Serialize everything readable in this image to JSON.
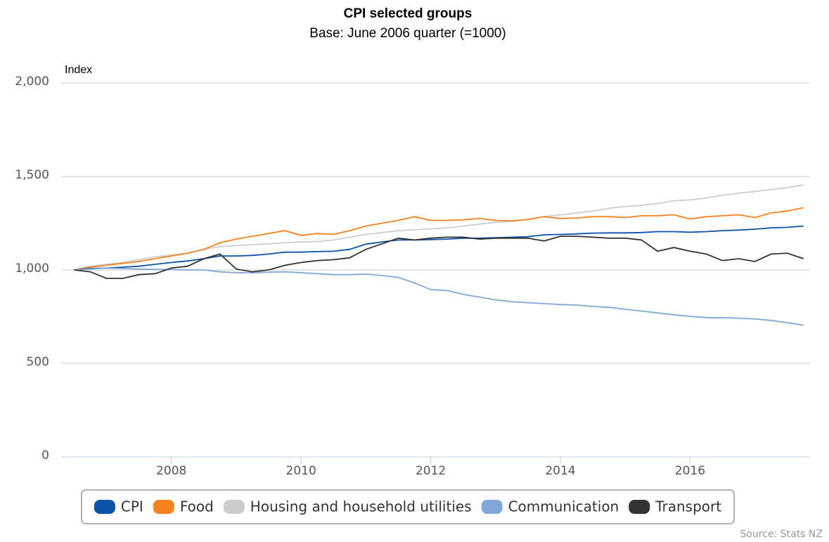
{
  "chart_data": {
    "type": "line",
    "title": "CPI selected groups",
    "subtitle": "Base: June 2006 quarter (=1000)",
    "y_axis_label": "Index",
    "source": "Source: Stats NZ",
    "x": [
      2006.5,
      2006.75,
      2007,
      2007.25,
      2007.5,
      2007.75,
      2008,
      2008.25,
      2008.5,
      2008.75,
      2009,
      2009.25,
      2009.5,
      2009.75,
      2010,
      2010.25,
      2010.5,
      2010.75,
      2011,
      2011.25,
      2011.5,
      2011.75,
      2012,
      2012.25,
      2012.5,
      2012.75,
      2013,
      2013.25,
      2013.5,
      2013.75,
      2014,
      2014.25,
      2014.5,
      2014.75,
      2015,
      2015.25,
      2015.5,
      2015.75,
      2016,
      2016.25,
      2016.5,
      2016.75,
      2017,
      2017.25,
      2017.5,
      2017.75
    ],
    "series": [
      {
        "name": "CPI",
        "color": "#0b52a8",
        "values": [
          1000,
          1008,
          1010,
          1015,
          1020,
          1030,
          1040,
          1048,
          1060,
          1075,
          1075,
          1078,
          1085,
          1095,
          1095,
          1098,
          1100,
          1110,
          1138,
          1150,
          1160,
          1160,
          1162,
          1165,
          1170,
          1170,
          1172,
          1175,
          1178,
          1188,
          1190,
          1193,
          1197,
          1198,
          1198,
          1200,
          1205,
          1205,
          1202,
          1205,
          1210,
          1213,
          1218,
          1225,
          1228,
          1235
        ]
      },
      {
        "name": "Food",
        "color": "#f5821f",
        "values": [
          1000,
          1015,
          1025,
          1035,
          1045,
          1060,
          1075,
          1090,
          1110,
          1145,
          1165,
          1180,
          1195,
          1210,
          1185,
          1195,
          1190,
          1210,
          1235,
          1250,
          1265,
          1285,
          1265,
          1265,
          1268,
          1275,
          1265,
          1262,
          1270,
          1285,
          1275,
          1278,
          1285,
          1285,
          1280,
          1290,
          1290,
          1295,
          1272,
          1285,
          1290,
          1295,
          1280,
          1305,
          1315,
          1333
        ]
      },
      {
        "name": "Housing and household utilities",
        "color": "#cccccc",
        "values": [
          1000,
          1020,
          1030,
          1040,
          1055,
          1070,
          1080,
          1090,
          1110,
          1125,
          1130,
          1135,
          1140,
          1145,
          1150,
          1152,
          1160,
          1175,
          1190,
          1200,
          1210,
          1215,
          1220,
          1225,
          1235,
          1245,
          1255,
          1260,
          1270,
          1285,
          1295,
          1305,
          1315,
          1330,
          1340,
          1345,
          1355,
          1370,
          1375,
          1385,
          1400,
          1410,
          1420,
          1430,
          1440,
          1455
        ]
      },
      {
        "name": "Communication",
        "color": "#7fa7d8",
        "values": [
          1000,
          1005,
          1010,
          1008,
          1005,
          1003,
          1002,
          1000,
          1000,
          990,
          985,
          985,
          988,
          990,
          985,
          980,
          975,
          975,
          978,
          970,
          960,
          930,
          895,
          890,
          870,
          855,
          840,
          830,
          825,
          820,
          815,
          812,
          805,
          800,
          790,
          780,
          770,
          760,
          752,
          745,
          745,
          742,
          738,
          730,
          718,
          705
        ]
      },
      {
        "name": "Transport",
        "color": "#333333",
        "values": [
          1000,
          990,
          955,
          955,
          975,
          980,
          1010,
          1020,
          1060,
          1085,
          1005,
          990,
          1000,
          1025,
          1040,
          1050,
          1055,
          1065,
          1110,
          1140,
          1170,
          1160,
          1170,
          1175,
          1175,
          1165,
          1170,
          1170,
          1170,
          1155,
          1180,
          1180,
          1175,
          1170,
          1170,
          1160,
          1100,
          1120,
          1100,
          1085,
          1050,
          1060,
          1045,
          1085,
          1090,
          1060
        ]
      }
    ],
    "xlim": [
      2006.3,
      2017.85
    ],
    "xticks": [
      2008,
      2010,
      2012,
      2014,
      2016
    ],
    "ylim": [
      0,
      2000
    ],
    "yticks": [
      0,
      500,
      {
        "value": 1000,
        "label": "1,000"
      },
      {
        "value": 1500,
        "label": "1,500"
      },
      {
        "value": 2000,
        "label": "2,000"
      }
    ],
    "grid": true,
    "legend": "bottom"
  }
}
